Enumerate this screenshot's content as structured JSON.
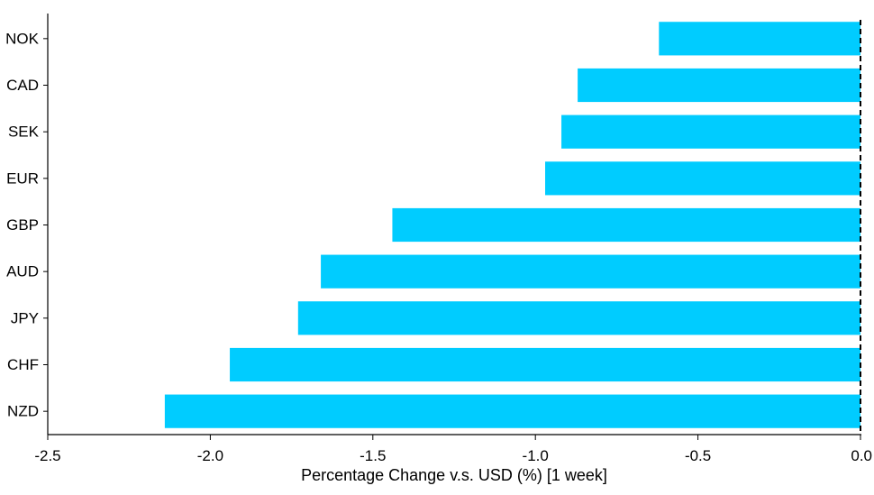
{
  "chart_data": {
    "type": "bar",
    "orientation": "horizontal",
    "categories": [
      "NOK",
      "CAD",
      "SEK",
      "EUR",
      "GBP",
      "AUD",
      "JPY",
      "CHF",
      "NZD"
    ],
    "values": [
      -0.62,
      -0.87,
      -0.92,
      -0.97,
      -1.44,
      -1.66,
      -1.73,
      -1.94,
      -2.14
    ],
    "xlabel": "Percentage Change v.s. USD (%) [1 week]",
    "ylabel": "",
    "title": "",
    "xlim": [
      -2.5,
      0.0
    ],
    "xticks": [
      -2.5,
      -2.0,
      -1.5,
      -1.0,
      -0.5,
      0.0
    ],
    "xtick_labels": [
      "-2.5",
      "-2.0",
      "-1.5",
      "-1.0",
      "-0.5",
      "0.0"
    ],
    "bar_color": "#00ccff",
    "zero_line_color": "#000000",
    "grid": false,
    "legend": "none"
  }
}
